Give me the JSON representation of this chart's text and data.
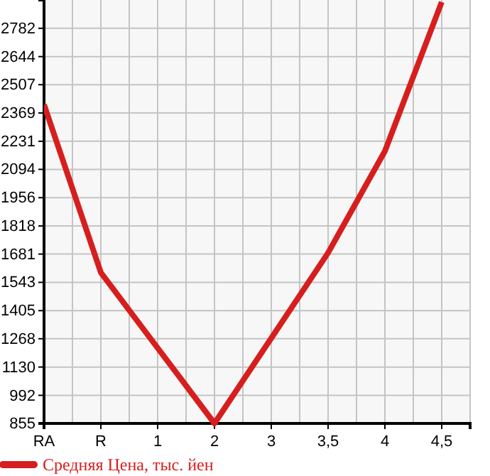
{
  "chart_data": {
    "type": "line",
    "categories": [
      "RA",
      "R",
      "1",
      "2",
      "3",
      "3,5",
      "4",
      "4,5"
    ],
    "series": [
      {
        "name": "Средняя Цена, тыс. йен",
        "color": "#d71e1e",
        "values": [
          2410,
          1591,
          1223,
          855,
          1271,
          1687,
          2183,
          2910
        ]
      }
    ],
    "ylim": [
      855,
      2920
    ],
    "yticks": [
      855,
      992,
      1130,
      1268,
      1405,
      1543,
      1681,
      1818,
      1956,
      2094,
      2231,
      2369,
      2507,
      2644,
      2782
    ],
    "grid": true,
    "legend": "bottom",
    "marker": "none",
    "line_style": "solid"
  }
}
